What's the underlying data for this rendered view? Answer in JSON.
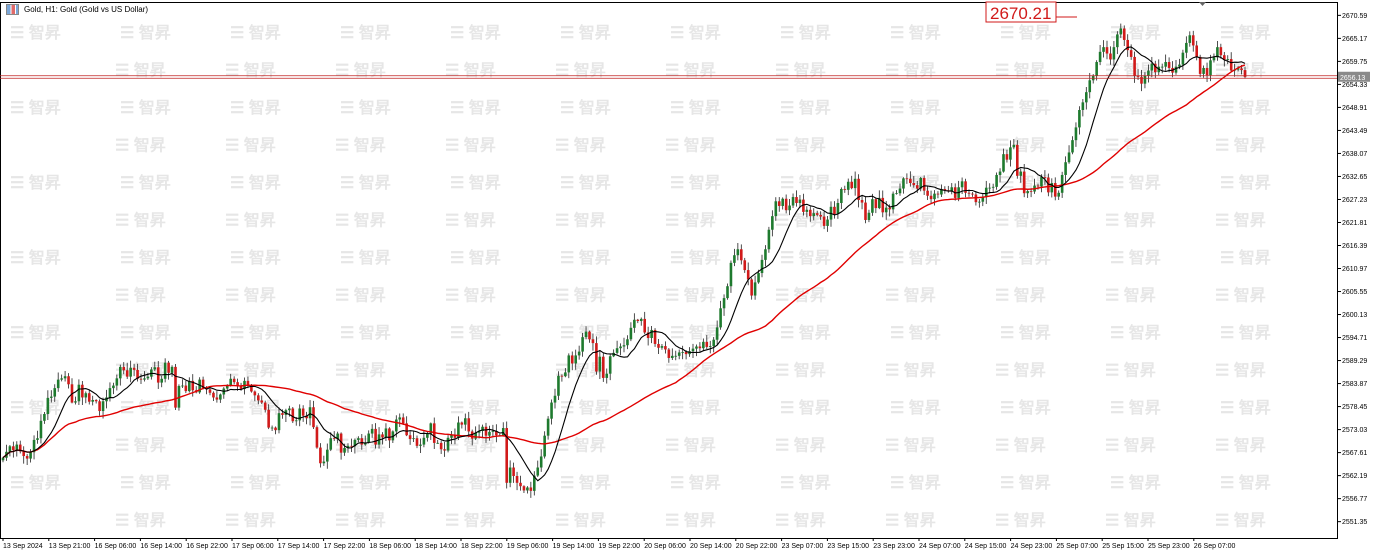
{
  "window": {
    "title": "Gold, H1:  Gold (Gold vs US Dollar)"
  },
  "watermark": "智昇",
  "price_label": "2670.21",
  "current_price": "2656.13",
  "chart_data": {
    "type": "candlestick",
    "symbol": "Gold",
    "timeframe": "H1",
    "description": "Gold (Gold vs US Dollar)",
    "ylim": [
      2547.5,
      2673.5
    ],
    "y_ticks": [
      "2670.59",
      "2665.17",
      "2659.75",
      "2654.33",
      "2648.91",
      "2643.49",
      "2638.07",
      "2632.65",
      "2627.23",
      "2621.81",
      "2616.39",
      "2610.97",
      "2605.55",
      "2600.13",
      "2594.71",
      "2589.29",
      "2583.87",
      "2578.45",
      "2573.03",
      "2567.61",
      "2562.19",
      "2556.77",
      "2551.35"
    ],
    "x_ticks": [
      "13 Sep 2024",
      "13 Sep 21:00",
      "16 Sep 06:00",
      "16 Sep 14:00",
      "16 Sep 22:00",
      "17 Sep 06:00",
      "17 Sep 14:00",
      "17 Sep 22:00",
      "18 Sep 06:00",
      "18 Sep 14:00",
      "18 Sep 22:00",
      "19 Sep 06:00",
      "19 Sep 14:00",
      "19 Sep 22:00",
      "20 Sep 06:00",
      "20 Sep 14:00",
      "20 Sep 22:00",
      "23 Sep 07:00",
      "23 Sep 15:00",
      "23 Sep 23:00",
      "24 Sep 07:00",
      "24 Sep 15:00",
      "24 Sep 23:00",
      "25 Sep 07:00",
      "25 Sep 15:00",
      "25 Sep 23:00",
      "26 Sep 07:00"
    ],
    "current_price_line": 2656.13,
    "annotation": {
      "text": "2670.21",
      "value": 2670.21
    },
    "series": [
      {
        "name": "",
        "kind": "moving-average",
        "color": "#000000"
      },
      {
        "name": "",
        "kind": "moving-average",
        "color": "#e00000"
      }
    ],
    "close": [
      2566.4,
      2567.8,
      2569.1,
      2568.2,
      2569.5,
      2567.9,
      2566.8,
      2566.2,
      2567.7,
      2570.6,
      2571.0,
      2575.1,
      2576.7,
      2580.5,
      2580.8,
      2582.8,
      2584.8,
      2585.1,
      2585.6,
      2583.7,
      2579.4,
      2579.7,
      2583.6,
      2580.6,
      2581.6,
      2579.6,
      2580.0,
      2579.7,
      2577.4,
      2579.7,
      2580.6,
      2582.8,
      2583.4,
      2585.1,
      2587.8,
      2587.0,
      2585.5,
      2587.6,
      2587.1,
      2585.0,
      2584.8,
      2585.1,
      2585.5,
      2587.2,
      2587.7,
      2584.1,
      2585.0,
      2588.8,
      2586.4,
      2587.8,
      2578.2,
      2583.3,
      2583.4,
      2582.1,
      2584.5,
      2582.3,
      2581.8,
      2584.8,
      2582.8,
      2582.5,
      2581.7,
      2580.6,
      2580.1,
      2581.3,
      2582.7,
      2583.4,
      2585.0,
      2584.2,
      2583.3,
      2582.6,
      2584.5,
      2583.3,
      2582.0,
      2581.1,
      2579.9,
      2579.4,
      2577.7,
      2573.5,
      2573.5,
      2572.9,
      2576.9,
      2576.5,
      2577.6,
      2578.0,
      2575.0,
      2575.2,
      2578.0,
      2576.3,
      2575.7,
      2578.3,
      2573.6,
      2568.8,
      2565.1,
      2565.5,
      2568.3,
      2571.0,
      2570.8,
      2572.1,
      2567.6,
      2568.7,
      2569.2,
      2569.1,
      2570.6,
      2571.0,
      2569.5,
      2570.0,
      2572.1,
      2573.2,
      2569.5,
      2571.9,
      2571.2,
      2573.3,
      2570.5,
      2572.6,
      2575.4,
      2575.9,
      2574.5,
      2571.7,
      2570.8,
      2571.0,
      2569.2,
      2569.5,
      2571.1,
      2572.1,
      2574.5,
      2569.9,
      2569.9,
      2568.4,
      2568.1,
      2571.1,
      2571.8,
      2571.1,
      2574.7,
      2574.2,
      2575.7,
      2572.6,
      2570.9,
      2572.3,
      2572.7,
      2573.7,
      2571.6,
      2572.5,
      2572.7,
      2571.7,
      2571.7,
      2573.4,
      2560.5,
      2564.1,
      2562.1,
      2560.5,
      2559.7,
      2558.7,
      2559.4,
      2558.6,
      2562.2,
      2564.1,
      2566.7,
      2571.6,
      2575.6,
      2579.4,
      2581.0,
      2585.7,
      2585.6,
      2586.5,
      2590.5,
      2588.6,
      2590.5,
      2591.4,
      2594.8,
      2596.1,
      2594.3,
      2593.4,
      2586.7,
      2590.2,
      2585.2,
      2586.2,
      2590.3,
      2591.1,
      2592.2,
      2592.6,
      2592.9,
      2594.3,
      2597.0,
      2598.9,
      2598.6,
      2599.1,
      2595.9,
      2594.6,
      2596.5,
      2593.2,
      2592.3,
      2592.7,
      2591.9,
      2589.9,
      2590.4,
      2590.4,
      2591.2,
      2591.3,
      2590.8,
      2591.5,
      2592.1,
      2592.6,
      2592.2,
      2593.7,
      2592.5,
      2592.7,
      2594.2,
      2597.1,
      2601.6,
      2604.0,
      2606.8,
      2612.3,
      2614.1,
      2615.5,
      2612.9,
      2610.6,
      2608.4,
      2604.6,
      2607.7,
      2609.9,
      2613.0,
      2615.5,
      2620.1,
      2623.3,
      2626.8,
      2625.7,
      2627.4,
      2624.7,
      2625.8,
      2627.8,
      2626.4,
      2627.2,
      2624.3,
      2624.8,
      2623.3,
      2624.0,
      2623.6,
      2623.2,
      2621.0,
      2622.5,
      2625.5,
      2623.8,
      2626.4,
      2629.7,
      2629.5,
      2631.4,
      2629.9,
      2632.1,
      2627.1,
      2626.5,
      2622.4,
      2624.1,
      2627.3,
      2625.2,
      2627.6,
      2624.2,
      2625.3,
      2624.9,
      2628.6,
      2628.7,
      2629.8,
      2632.2,
      2632.1,
      2631.1,
      2630.6,
      2629.8,
      2632.3,
      2629.3,
      2628.1,
      2627.3,
      2628.6,
      2628.4,
      2629.7,
      2629.4,
      2629.2,
      2630.1,
      2627.6,
      2630.1,
      2631.5,
      2628.8,
      2628.6,
      2628.4,
      2626.6,
      2626.7,
      2627.8,
      2630.0,
      2630.0,
      2630.2,
      2633.0,
      2633.8,
      2637.9,
      2636.6,
      2639.5,
      2640.1,
      2632.8,
      2633.8,
      2628.7,
      2629.2,
      2629.1,
      2630.5,
      2630.3,
      2632.5,
      2632.4,
      2628.9,
      2631.1,
      2627.9,
      2628.8,
      2633.0,
      2636.0,
      2638.3,
      2641.2,
      2644.2,
      2648.3,
      2650.1,
      2652.5,
      2655.3,
      2656.4,
      2659.6,
      2662.0,
      2663.1,
      2661.6,
      2660.2,
      2663.1,
      2666.1,
      2667.5,
      2664.8,
      2662.4,
      2660.8,
      2656.4,
      2656.1,
      2654.5,
      2656.4,
      2657.6,
      2659.2,
      2657.2,
      2658.5,
      2658.5,
      2659.6,
      2658.2,
      2657.1,
      2658.5,
      2659.0,
      2661.8,
      2664.1,
      2665.9,
      2663.5,
      2660.8,
      2656.8,
      2658.2,
      2656.5,
      2660.0,
      2660.7,
      2663.1,
      2661.2,
      2660.1,
      2660.3,
      2657.6,
      2657.8,
      2658.1,
      2657.7,
      2656.1
    ]
  }
}
